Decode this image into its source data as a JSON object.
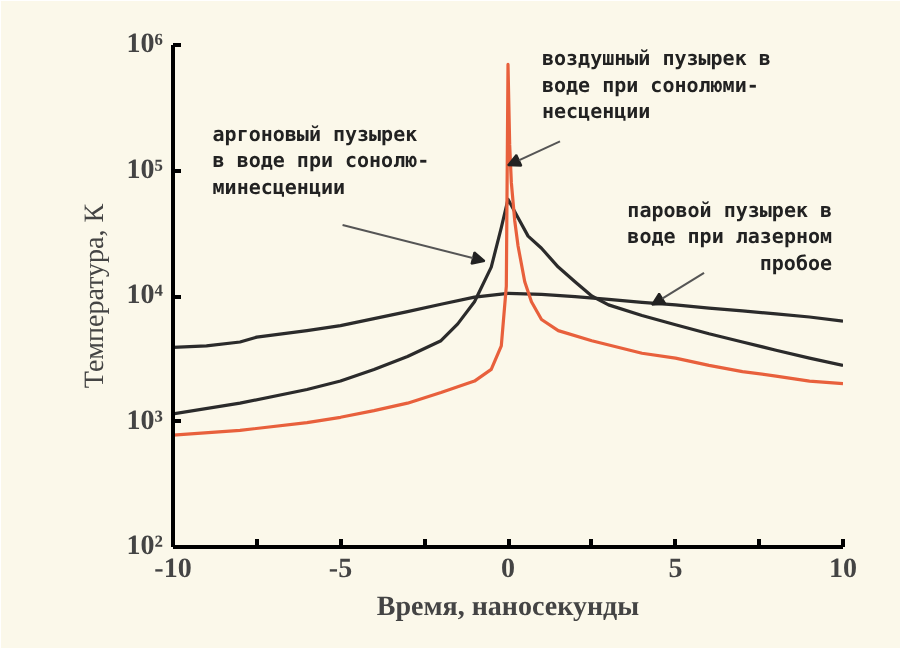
{
  "chart_data": {
    "type": "line",
    "xlabel": "Время, наносекунды",
    "ylabel": "Температура, К",
    "log": "y",
    "grid": false,
    "xlim": [
      -10,
      10
    ],
    "xticks": [
      -10,
      {
        "value": -7.5,
        "label": null
      },
      -5,
      {
        "value": -2.5,
        "label": null
      },
      0,
      {
        "value": 2.5,
        "label": null
      },
      5,
      {
        "value": 7.5,
        "label": null
      },
      10
    ],
    "ylim": [
      100,
      1000000
    ],
    "yticks": [
      {
        "value": 100,
        "label": "10²"
      },
      {
        "value": 1000,
        "label": "10³"
      },
      {
        "value": 10000,
        "label": "10⁴"
      },
      {
        "value": 100000,
        "label": "10⁵"
      },
      {
        "value": 1000000,
        "label": "10⁶"
      }
    ],
    "series": [
      {
        "color": "#2b2b2b",
        "x": [
          -10,
          -9,
          -8,
          -7.5,
          -6,
          -5,
          -4,
          -3,
          -2,
          -1,
          0,
          1,
          2,
          3,
          4,
          5,
          6,
          7,
          8,
          9,
          10
        ],
        "values": [
          3900,
          4000,
          4300,
          4700,
          5300,
          5800,
          6600,
          7500,
          8600,
          9800,
          10500,
          10300,
          9900,
          9400,
          8900,
          8500,
          8000,
          7600,
          7200,
          6800,
          6300
        ]
      },
      {
        "color": "#2b2b2b",
        "x": [
          -10,
          -8,
          -6,
          -5,
          -4,
          -3,
          -2,
          -1.5,
          -1,
          -0.5,
          -0.2,
          0,
          0.3,
          0.6,
          1,
          1.5,
          2,
          2.5,
          3,
          4,
          5,
          6,
          7,
          8,
          9,
          10
        ],
        "values": [
          1150,
          1400,
          1800,
          2100,
          2600,
          3300,
          4400,
          6000,
          9000,
          17000,
          35000,
          59000,
          42000,
          30000,
          24000,
          17000,
          13000,
          10000,
          8500,
          7000,
          5900,
          5000,
          4300,
          3700,
          3200,
          2800
        ]
      },
      {
        "color": "#e8603c",
        "x": [
          -10,
          -8,
          -6,
          -5,
          -4,
          -3,
          -2,
          -1,
          -0.5,
          -0.2,
          -0.05,
          0,
          0.05,
          0.1,
          0.2,
          0.3,
          0.5,
          0.7,
          1,
          1.5,
          2.5,
          4,
          5,
          6,
          7,
          8,
          9,
          10
        ],
        "values": [
          780,
          850,
          980,
          1080,
          1220,
          1400,
          1700,
          2100,
          2600,
          4000,
          12000,
          700000,
          160000,
          80000,
          40000,
          25000,
          13000,
          9000,
          6500,
          5300,
          4400,
          3500,
          3200,
          2800,
          2500,
          2300,
          2100,
          2000
        ]
      }
    ],
    "annotations": [
      {
        "text": "аргоновый пузырек\nв воде при сонолю-\nминесценции",
        "x": -0.7,
        "y": 19000
      },
      {
        "text": "воздушный пузырек в\nводе при сонолюми-\nнесценции",
        "x": 0,
        "y": 110000
      },
      {
        "text": "паровой пузырек в\nводе при лазерном\nпробое",
        "x": 4.3,
        "y": 8500
      }
    ]
  }
}
